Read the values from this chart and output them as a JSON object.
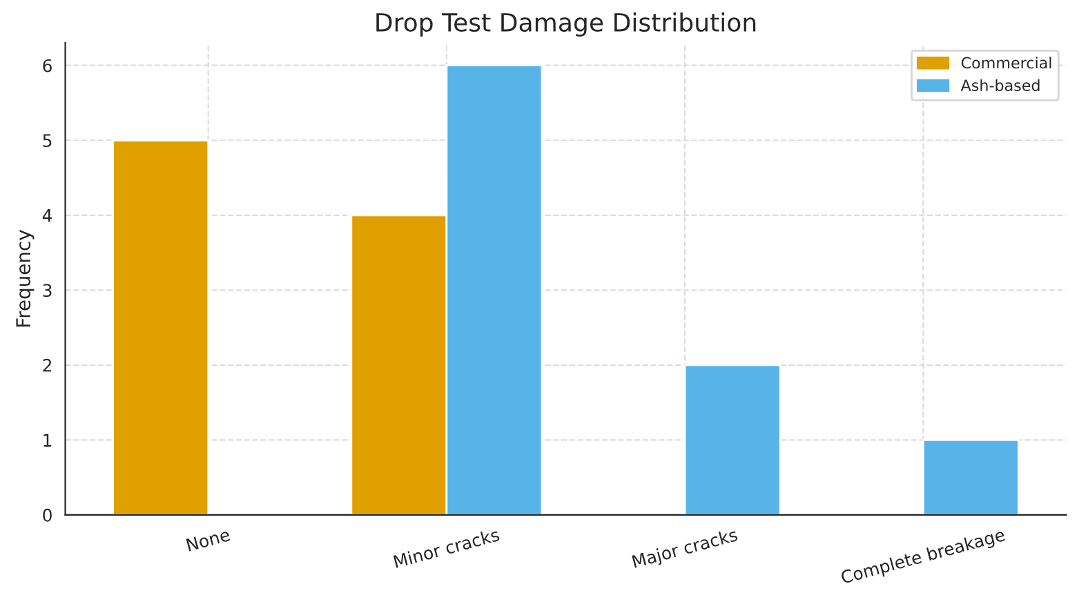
{
  "chart_data": {
    "type": "bar",
    "title": "Drop Test Damage Distribution",
    "ylabel": "Frequency",
    "categories": [
      "None",
      "Minor cracks",
      "Major cracks",
      "Complete breakage"
    ],
    "series": [
      {
        "name": "Commercial",
        "color": "#e0a000",
        "values": [
          5,
          4,
          null,
          null
        ]
      },
      {
        "name": "Ash-based",
        "color": "#56b4e9",
        "values": [
          null,
          6,
          2,
          1
        ]
      }
    ],
    "ylim": [
      0,
      6.3
    ],
    "yticks": [
      0,
      1,
      2,
      3,
      4,
      5,
      6
    ],
    "grid": true,
    "legend": "top right"
  }
}
